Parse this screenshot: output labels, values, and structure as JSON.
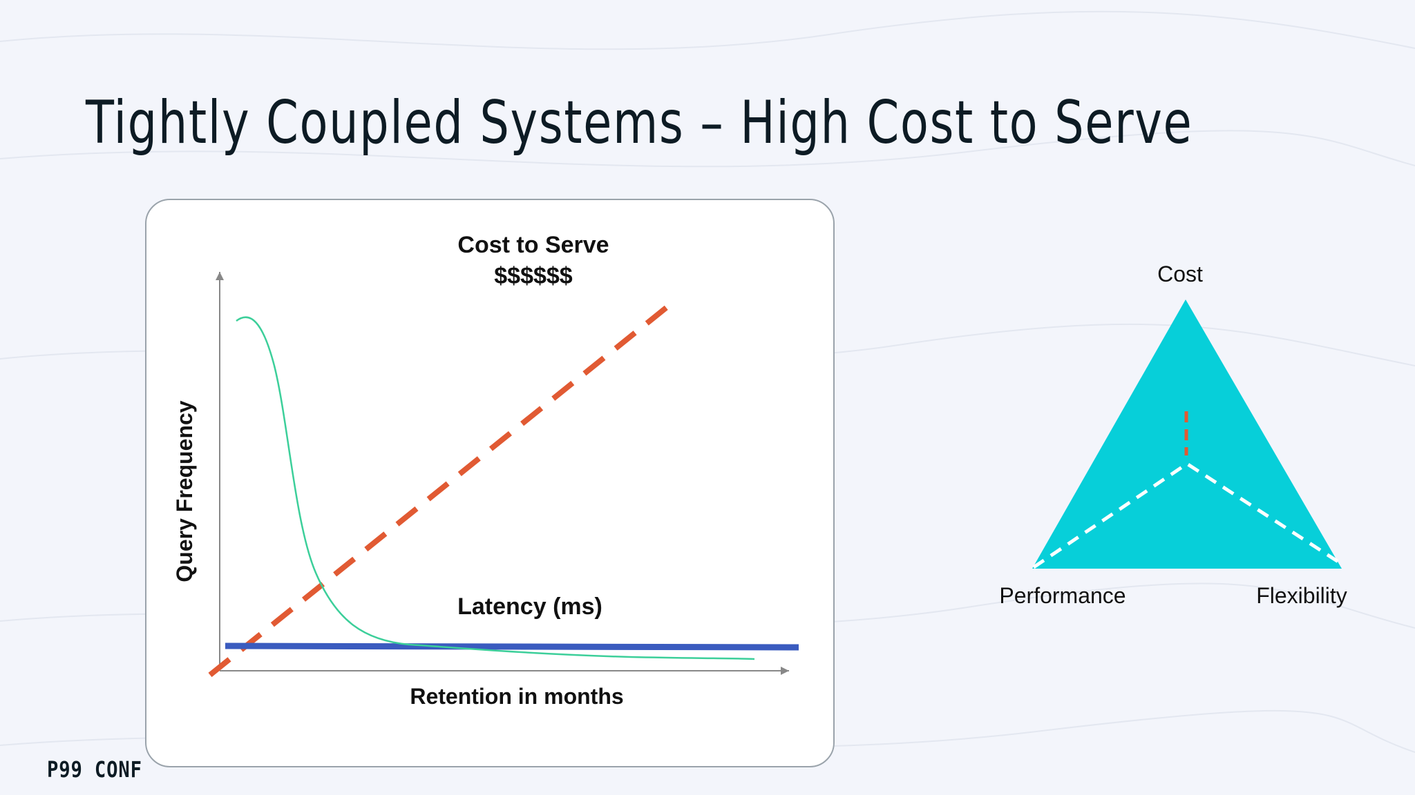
{
  "slide": {
    "title": "Tightly Coupled Systems – High Cost to Serve",
    "footer": "P99 CONF"
  },
  "chart": {
    "cost_title": "Cost to Serve",
    "cost_symbol": "$$$$$$",
    "latency_label": "Latency (ms)",
    "xlabel": "Retention in months",
    "ylabel": "Query Frequency"
  },
  "triangle": {
    "top_label": "Cost",
    "left_label": "Performance",
    "right_label": "Flexibility"
  },
  "colors": {
    "background": "#f3f5fb",
    "cost_line": "#e15a33",
    "latency_line": "#3a5bbf",
    "frequency_curve": "#3ccf9a",
    "triangle_fill": "#07cfd9",
    "title_text": "#0d1b24"
  }
}
